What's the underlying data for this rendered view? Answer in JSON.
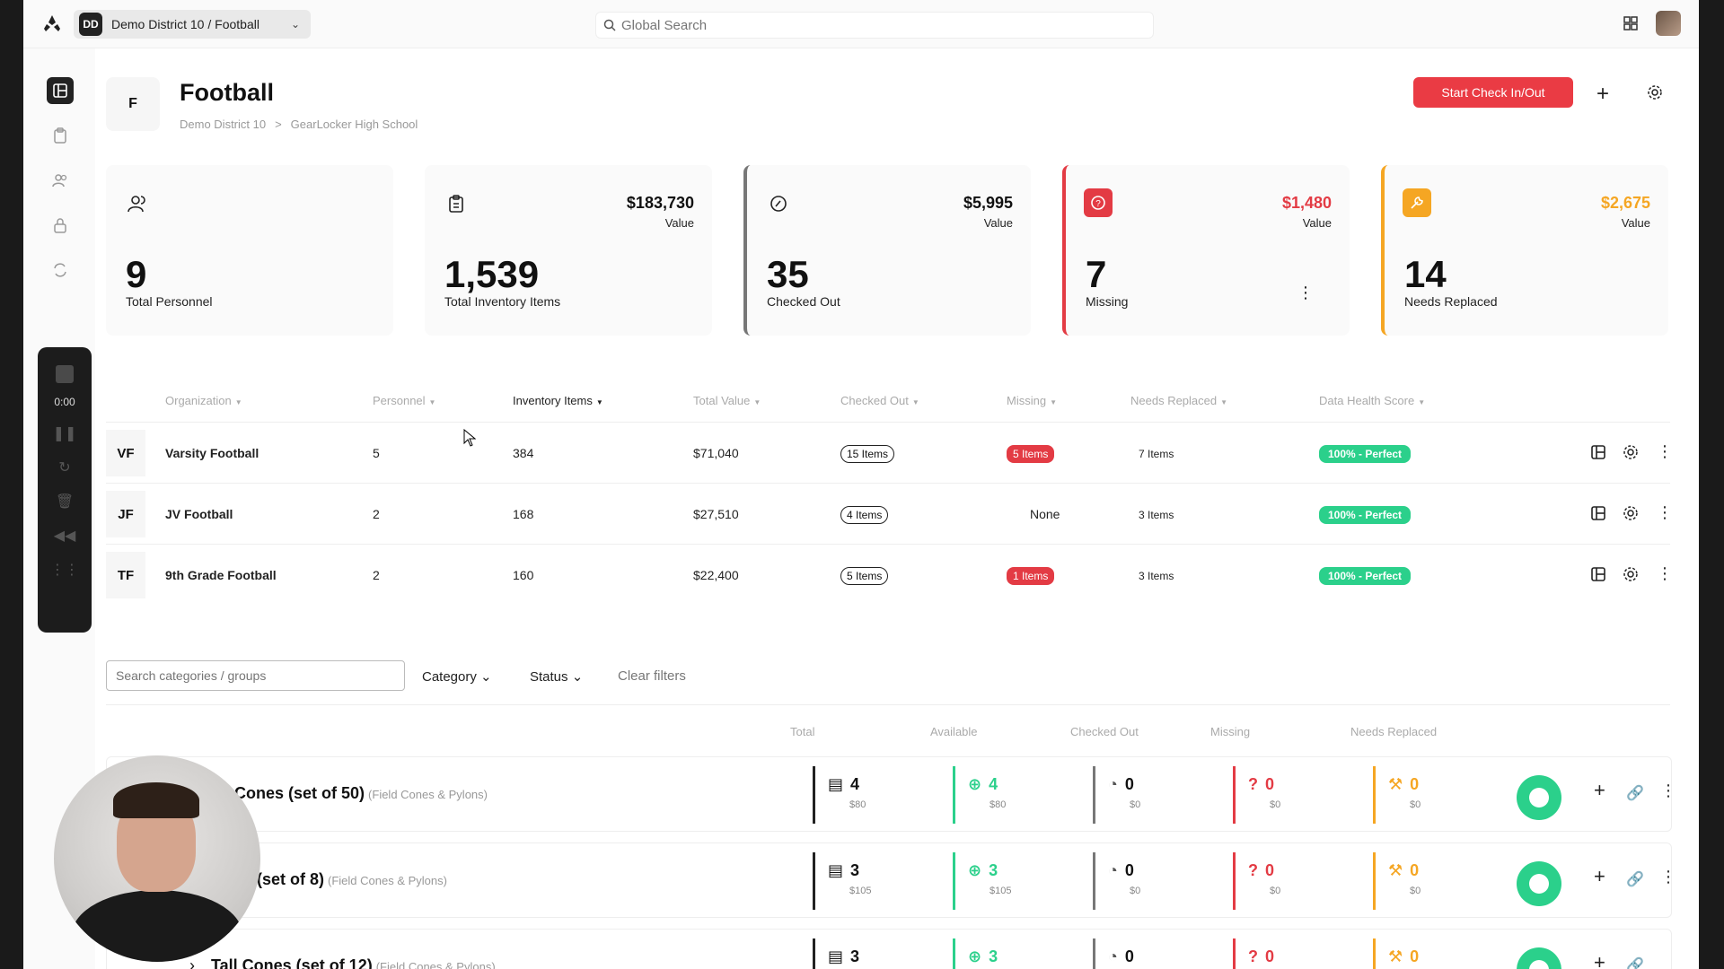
{
  "topbar": {
    "org_badge": "DD",
    "org_name": "Demo District 10 / Football",
    "search_placeholder": "Global Search"
  },
  "rail": {
    "recorder_time": "0:00"
  },
  "header": {
    "badge": "F",
    "title": "Football",
    "breadcrumb": [
      "Demo District 10",
      ">",
      "GearLocker High School"
    ],
    "start_button": "Start Check In/Out"
  },
  "stats": [
    {
      "big": "9",
      "label": "Total Personnel",
      "value": "",
      "value_label": ""
    },
    {
      "big": "1,539",
      "label": "Total Inventory Items",
      "value": "$183,730",
      "value_label": "Value"
    },
    {
      "big": "35",
      "label": "Checked Out",
      "value": "$5,995",
      "value_label": "Value"
    },
    {
      "big": "7",
      "label": "Missing",
      "value": "$1,480",
      "value_label": "Value"
    },
    {
      "big": "14",
      "label": "Needs Replaced",
      "value": "$2,675",
      "value_label": "Value"
    }
  ],
  "colors": {
    "red": "#e33b44",
    "amber": "#f5a623",
    "green": "#2bd08b",
    "gray": "#777777"
  },
  "org_table": {
    "headers": [
      "Organization",
      "Personnel",
      "Inventory Items",
      "Total Value",
      "Checked Out",
      "Missing",
      "Needs Replaced",
      "Data Health Score"
    ],
    "rows": [
      {
        "abbr": "VF",
        "name": "Varsity Football",
        "personnel": "5",
        "items": "384",
        "value": "$71,040",
        "checked_out": "15 Items",
        "missing": "5 Items",
        "needs": "7 Items",
        "health": "100% - Perfect"
      },
      {
        "abbr": "JF",
        "name": "JV Football",
        "personnel": "2",
        "items": "168",
        "value": "$27,510",
        "checked_out": "4 Items",
        "missing": "None",
        "needs": "3 Items",
        "health": "100% - Perfect"
      },
      {
        "abbr": "TF",
        "name": "9th Grade Football",
        "personnel": "2",
        "items": "160",
        "value": "$22,400",
        "checked_out": "5 Items",
        "missing": "1 Items",
        "needs": "3 Items",
        "health": "100% - Perfect"
      }
    ]
  },
  "filters": {
    "search_placeholder": "Search categories / groups",
    "category": "Category",
    "status": "Status",
    "clear": "Clear filters"
  },
  "cat_table": {
    "headers": [
      "Total",
      "Available",
      "Checked Out",
      "Missing",
      "Needs Replaced"
    ],
    "rows": [
      {
        "name": "r Cones (set of 50)",
        "group": "(Field Cones & Pylons)",
        "total": "4",
        "total_v": "$80",
        "avail": "4",
        "avail_v": "$80",
        "out": "0",
        "out_v": "$0",
        "miss": "0",
        "miss_v": "$0",
        "need": "0",
        "need_v": "$0"
      },
      {
        "name": "ons (set of 8)",
        "group": "(Field Cones & Pylons)",
        "total": "3",
        "total_v": "$105",
        "avail": "3",
        "avail_v": "$105",
        "out": "0",
        "out_v": "$0",
        "miss": "0",
        "miss_v": "$0",
        "need": "0",
        "need_v": "$0"
      },
      {
        "name": "Tall Cones (set of 12)",
        "group": "(Field Cones & Pylons)",
        "total": "3",
        "total_v": "",
        "avail": "3",
        "avail_v": "",
        "out": "0",
        "out_v": "",
        "miss": "0",
        "miss_v": "",
        "need": "0",
        "need_v": ""
      }
    ]
  }
}
